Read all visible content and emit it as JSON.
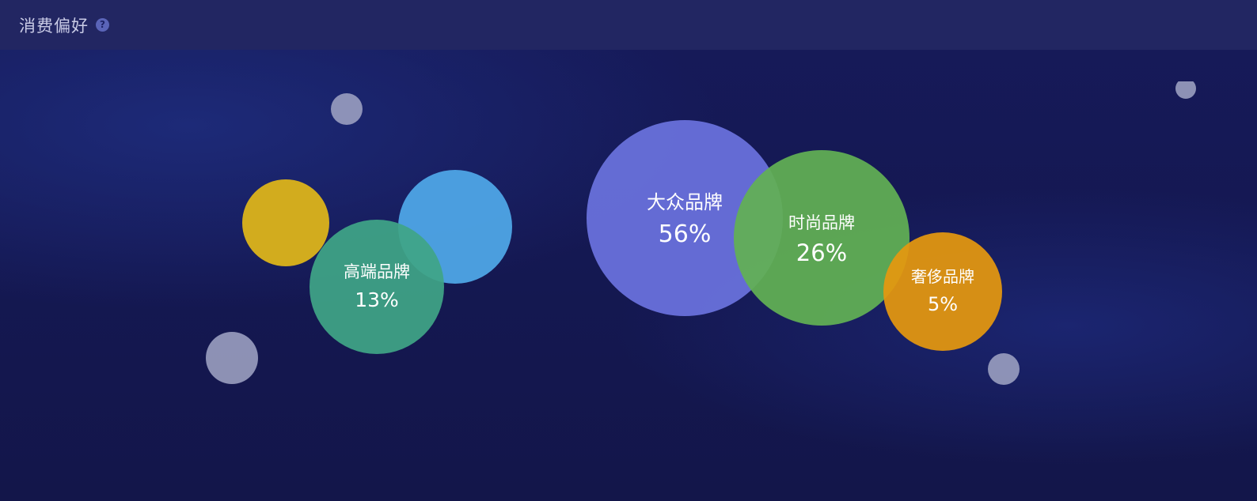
{
  "header": {
    "title": "消费偏好",
    "help_icon": "question-circle-icon"
  },
  "chart_data": {
    "type": "bubble",
    "title": "消费偏好",
    "series": [
      {
        "name": "高端品牌",
        "value": "13%",
        "color": "#3fa586"
      },
      {
        "name": "大众品牌",
        "value": "56%",
        "color": "#6a72de"
      },
      {
        "name": "时尚品牌",
        "value": "26%",
        "color": "#62b054"
      },
      {
        "name": "奢侈品牌",
        "value": "5%",
        "color": "#e5980f"
      }
    ],
    "decorative_bubbles": [
      {
        "color": "#dcb41a"
      },
      {
        "color": "#4ea5e6"
      },
      {
        "color": "#9a9ec0"
      },
      {
        "color": "#9a9ec0"
      },
      {
        "color": "#9a9ec0"
      },
      {
        "color": "#9a9ec0"
      }
    ]
  }
}
